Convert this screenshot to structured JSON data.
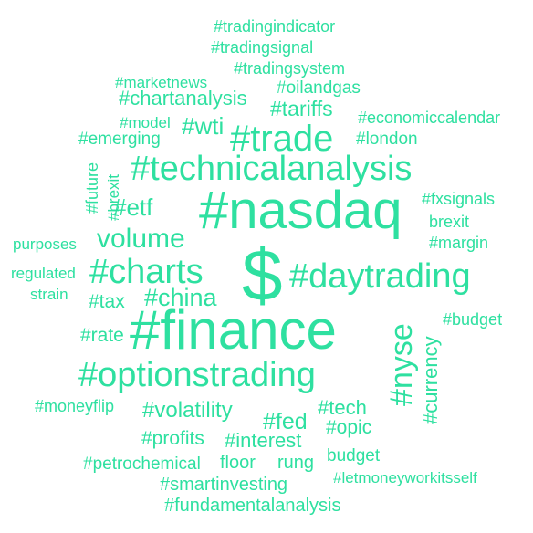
{
  "accent_color": "#2ee0a0",
  "words": {
    "tradingindicator": "#tradingindicator",
    "tradingsignal": "#tradingsignal",
    "tradingsystem": "#tradingsystem",
    "marketnews": "#marketnews",
    "oilandgas": "#oilandgas",
    "chartanalysis": "#chartanalysis",
    "tariffs": "#tariffs",
    "economiccalendar": "#economiccalendar",
    "model": "#model",
    "wti": "#wti",
    "trade": "#trade",
    "emerging": "#emerging",
    "london": "#london",
    "technicalanalysis": "#technicalanalysis",
    "future": "#future",
    "brexit_tag": "#brexit",
    "etf": "#etf",
    "nasdaq": "#nasdaq",
    "fxsignals": "#fxsignals",
    "brexit": "brexit",
    "volume": "volume",
    "purposes": "purposes",
    "margin": "#margin",
    "charts": "#charts",
    "dollar": "$",
    "daytrading": "#daytrading",
    "regulated": "regulated",
    "strain": "strain",
    "tax": "#tax",
    "china": "#china",
    "budget_tag": "#budget",
    "rate": "#rate",
    "finance": "#finance",
    "nyse": "#nyse",
    "currency": "#currency",
    "optionstrading": "#optionstrading",
    "moneyflip": "#moneyflip",
    "volatility": "#volatility",
    "tech": "#tech",
    "fed": "#fed",
    "opic": "#opic",
    "profits": "#profits",
    "interest": "#interest",
    "budget": "budget",
    "petrochemical": "#petrochemical",
    "floor": "floor",
    "rung": "rung",
    "letmoneyworkitsself": "#letmoneyworkitsself",
    "smartinvesting": "#smartinvesting",
    "fundamentalanalysis": "#fundamentalanalysis"
  }
}
